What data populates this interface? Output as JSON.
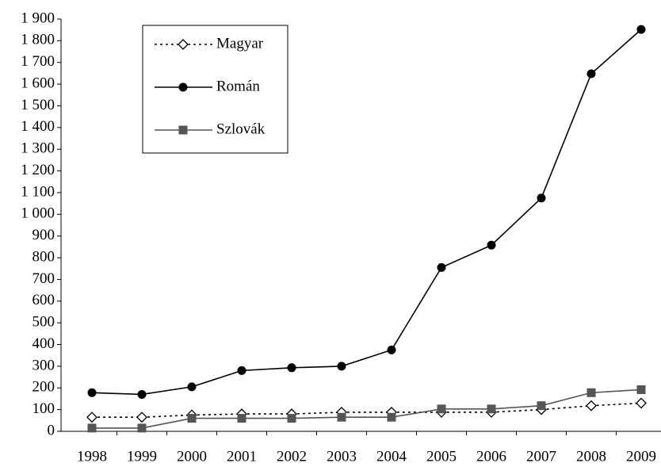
{
  "chart_data": {
    "type": "line",
    "categories": [
      "1998",
      "1999",
      "2000",
      "2001",
      "2002",
      "2003",
      "2004",
      "2005",
      "2006",
      "2007",
      "2008",
      "2009"
    ],
    "series": [
      {
        "name": "Magyar",
        "color": "#000000",
        "dash": "dotted",
        "marker": "diamond",
        "values": [
          65,
          65,
          75,
          80,
          80,
          88,
          88,
          88,
          88,
          100,
          118,
          130
        ]
      },
      {
        "name": "Román",
        "color": "#000000",
        "dash": "solid",
        "marker": "circle",
        "values": [
          178,
          170,
          205,
          280,
          293,
          300,
          375,
          755,
          858,
          1075,
          1648,
          1852
        ]
      },
      {
        "name": "Szlovák",
        "color": "#555555",
        "dash": "solid",
        "marker": "square",
        "values": [
          15,
          15,
          60,
          60,
          60,
          65,
          65,
          103,
          103,
          118,
          178,
          192
        ]
      }
    ],
    "ylim": [
      0,
      1900
    ],
    "yticks": [
      0,
      100,
      200,
      300,
      400,
      500,
      600,
      700,
      800,
      900,
      {
        "value": 1000,
        "label": "1 000"
      },
      {
        "value": 1100,
        "label": "1 100"
      },
      {
        "value": 1200,
        "label": "1 200"
      },
      {
        "value": 1300,
        "label": "1 300"
      },
      {
        "value": 1400,
        "label": "1 400"
      },
      {
        "value": 1500,
        "label": "1 500"
      },
      {
        "value": 1600,
        "label": "1 600"
      },
      {
        "value": 1700,
        "label": "1 700"
      },
      {
        "value": 1800,
        "label": "1 800"
      },
      {
        "value": 1900,
        "label": "1 900"
      }
    ],
    "legend": "upper-left"
  }
}
